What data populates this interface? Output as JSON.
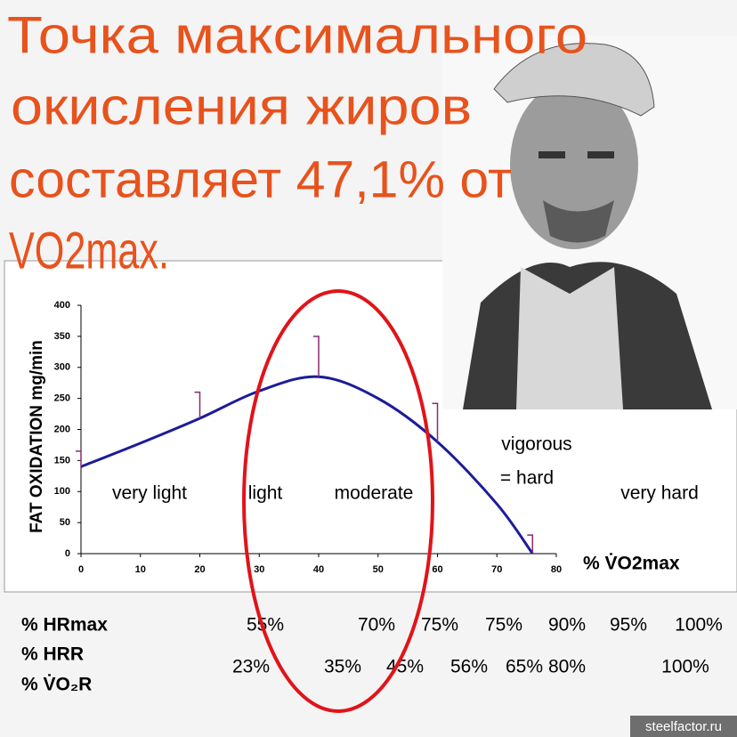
{
  "headline": [
    "Точка максимального",
    "окисления жиров",
    "составляет 47,1% от",
    "VO2max."
  ],
  "chart_data": {
    "type": "line",
    "y_label": "FAT OXIDATION mg/min",
    "x_label": "% V̇O2max",
    "x": [
      0,
      10,
      20,
      30,
      40,
      50,
      60,
      70,
      76
    ],
    "series": [
      {
        "color": "#1c1c9a",
        "values": [
          140,
          178,
          218,
          262,
          285,
          250,
          180,
          80,
          0
        ],
        "errors": [
          25,
          null,
          42,
          null,
          65,
          null,
          62,
          null,
          30
        ],
        "error_color": "#8a2a6e"
      }
    ],
    "xlim": [
      0,
      80
    ],
    "xticks": [
      0,
      10,
      20,
      30,
      40,
      50,
      60,
      70,
      80
    ],
    "ylim": [
      0,
      400
    ],
    "yticks": [
      0,
      50,
      100,
      150,
      200,
      250,
      300,
      350,
      400
    ],
    "annotations": [
      "very light",
      "light",
      "moderate",
      "vigorous",
      "= hard",
      "very hard"
    ],
    "highlight_color": "#e0141a"
  },
  "table": {
    "rows": [
      {
        "labels": [
          "% HRmax"
        ],
        "values": [
          "55%",
          "70%",
          "75%",
          "75%",
          "90%",
          "95%",
          "100%"
        ]
      },
      {
        "labels": [
          "% HRR",
          "% V̇O₂R"
        ],
        "values": [
          "23%",
          "35%",
          "45%",
          "56%",
          "65%",
          "80%",
          "100%"
        ]
      }
    ]
  },
  "watermark": "steelfactor.ru"
}
